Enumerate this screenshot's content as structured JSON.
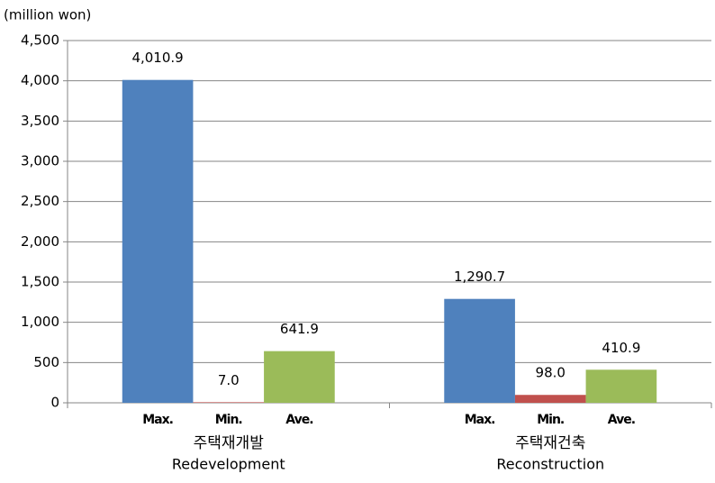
{
  "chart_data": {
    "type": "bar",
    "y_unit": "(million won)",
    "categories": [
      "주택재개발",
      "주택재건축"
    ],
    "category_subtitles": [
      "Redevelopment",
      "Reconstruction"
    ],
    "series": [
      {
        "name": "Max.",
        "color": "#4f81bd",
        "values": [
          4010.9,
          1290.7
        ],
        "value_labels": [
          "4,010.9",
          "1,290.7"
        ]
      },
      {
        "name": "Min.",
        "color": "#c0504d",
        "values": [
          7.0,
          98.0
        ],
        "value_labels": [
          "7.0",
          "98.0"
        ]
      },
      {
        "name": "Ave.",
        "color": "#9bbb59",
        "values": [
          641.9,
          410.9
        ],
        "value_labels": [
          "641.9",
          "410.9"
        ]
      }
    ],
    "ylim": [
      0,
      4500
    ],
    "yticks": [
      0,
      500,
      {
        "value": 1000,
        "label": "1,000"
      },
      {
        "value": 1500,
        "label": "1,500"
      },
      {
        "value": 2000,
        "label": "2,000"
      },
      {
        "value": 2500,
        "label": "2,500"
      },
      {
        "value": 3000,
        "label": "3,000"
      },
      {
        "value": 3500,
        "label": "3,500"
      },
      {
        "value": 4000,
        "label": "4,000"
      },
      {
        "value": 4500,
        "label": "4,500"
      }
    ],
    "grid": true
  }
}
